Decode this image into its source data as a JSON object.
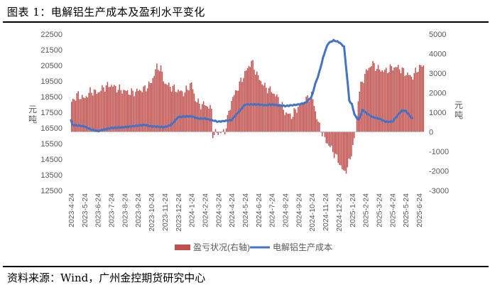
{
  "figure": {
    "title": "图表 1：电解铝生产成本及盈利水平变化",
    "source": "资料来源：Wind，广州金控期货研究中心"
  },
  "chart_data": {
    "type": "bar+line",
    "left_axis": {
      "label": "元/吨",
      "min": 12500,
      "max": 22500,
      "step": 1000,
      "ticks": [
        "22500",
        "21500",
        "20500",
        "19500",
        "18500",
        "17500",
        "16500",
        "15500",
        "14500",
        "13500",
        "12500"
      ]
    },
    "right_axis": {
      "label": "元/吨",
      "min": -3000,
      "max": 5000,
      "step": 1000,
      "ticks": [
        "5000",
        "4000",
        "3000",
        "2000",
        "1000",
        "0",
        "-1000",
        "-2000",
        "-3000"
      ]
    },
    "x_tick_labels": [
      "2023-4-24",
      "2023-5-24",
      "2023-6-24",
      "2023-7-24",
      "2023-8-24",
      "2023-9-24",
      "2023-10-24",
      "2023-11-24",
      "2023-12-24",
      "2024-1-24",
      "2024-2-24",
      "2024-3-24",
      "2024-4-24",
      "2024-5-24",
      "2024-6-24",
      "2024-7-24",
      "2024-8-24",
      "2024-9-24",
      "2024-10-24",
      "2024-11-24",
      "2024-12-24",
      "2025-1-24",
      "2025-2-24",
      "2025-3-24",
      "2025-4-24",
      "2025-5-24",
      "2025-6-24"
    ],
    "legend": {
      "position": "bottom",
      "items": [
        "盈亏状况(右轴)",
        "电解铝生产成本"
      ]
    },
    "series": [
      {
        "name": "盈亏状况(右轴)",
        "type": "bar",
        "axis": "right",
        "color": "#C0504D",
        "knots": [
          [
            0,
            1500
          ],
          [
            0.5,
            1900
          ],
          [
            1,
            1700
          ],
          [
            1.5,
            2100
          ],
          [
            2,
            2000
          ],
          [
            2.5,
            2300
          ],
          [
            3,
            2400
          ],
          [
            3.5,
            2200
          ],
          [
            4,
            2100
          ],
          [
            4.5,
            2000
          ],
          [
            5,
            2100
          ],
          [
            5.5,
            2200
          ],
          [
            6,
            2500
          ],
          [
            6.4,
            3300
          ],
          [
            6.7,
            3300
          ],
          [
            7,
            2500
          ],
          [
            7.5,
            2300
          ],
          [
            8,
            2100
          ],
          [
            8.5,
            2000
          ],
          [
            9,
            2500
          ],
          [
            9.3,
            1700
          ],
          [
            9.6,
            1400
          ],
          [
            10,
            1400
          ],
          [
            10.5,
            1200
          ],
          [
            10.6,
            -100
          ],
          [
            11,
            -50
          ],
          [
            11.5,
            0
          ],
          [
            12,
            1600
          ],
          [
            12.5,
            2300
          ],
          [
            13,
            3000
          ],
          [
            13.5,
            3600
          ],
          [
            14,
            2800
          ],
          [
            14.5,
            2300
          ],
          [
            15,
            2100
          ],
          [
            15.5,
            1700
          ],
          [
            16,
            1000
          ],
          [
            16.5,
            800
          ],
          [
            17,
            1300
          ],
          [
            17.5,
            1600
          ],
          [
            18,
            1900
          ],
          [
            18.5,
            400
          ],
          [
            19,
            -400
          ],
          [
            19.5,
            -900
          ],
          [
            20,
            -1500
          ],
          [
            20.4,
            -2100
          ],
          [
            20.7,
            -1800
          ],
          [
            21,
            -1000
          ],
          [
            21.3,
            100
          ],
          [
            21.5,
            2000
          ],
          [
            22,
            3000
          ],
          [
            22.5,
            3500
          ],
          [
            23,
            3200
          ],
          [
            23.5,
            3100
          ],
          [
            24,
            3300
          ],
          [
            24.5,
            3300
          ],
          [
            25,
            3000
          ],
          [
            25.5,
            2800
          ],
          [
            26,
            3300
          ],
          [
            26.4,
            3400
          ]
        ]
      },
      {
        "name": "电解铝生产成本",
        "type": "line",
        "axis": "left",
        "color": "#4472C4",
        "knots": [
          [
            0,
            17000
          ],
          [
            0.1,
            16700
          ],
          [
            1,
            16600
          ],
          [
            1.5,
            16400
          ],
          [
            2,
            16300
          ],
          [
            2.5,
            16400
          ],
          [
            3,
            16500
          ],
          [
            4,
            16550
          ],
          [
            5,
            16650
          ],
          [
            5.5,
            16700
          ],
          [
            6,
            16600
          ],
          [
            7,
            16550
          ],
          [
            7.5,
            16700
          ],
          [
            8,
            17200
          ],
          [
            9,
            17250
          ],
          [
            9.5,
            17100
          ],
          [
            10,
            17100
          ],
          [
            11,
            16900
          ],
          [
            12,
            17000
          ],
          [
            12.5,
            17500
          ],
          [
            13,
            18000
          ],
          [
            14,
            18000
          ],
          [
            14.5,
            17950
          ],
          [
            15,
            18000
          ],
          [
            16,
            17900
          ],
          [
            17,
            18000
          ],
          [
            17.5,
            18100
          ],
          [
            18,
            18500
          ],
          [
            18.2,
            19200
          ],
          [
            18.5,
            19900
          ],
          [
            18.9,
            21200
          ],
          [
            19.2,
            21900
          ],
          [
            19.6,
            22100
          ],
          [
            20,
            22000
          ],
          [
            20.4,
            21700
          ],
          [
            20.6,
            20000
          ],
          [
            20.8,
            18200
          ],
          [
            21,
            18000
          ],
          [
            21.2,
            17300
          ],
          [
            21.5,
            17000
          ],
          [
            21.8,
            17700
          ],
          [
            22,
            17500
          ],
          [
            22.5,
            17200
          ],
          [
            23,
            17100
          ],
          [
            23.5,
            16900
          ],
          [
            24,
            16900
          ],
          [
            24.3,
            17200
          ],
          [
            24.7,
            17600
          ],
          [
            25,
            17600
          ],
          [
            25.3,
            17300
          ],
          [
            25.5,
            17100
          ]
        ]
      }
    ]
  }
}
